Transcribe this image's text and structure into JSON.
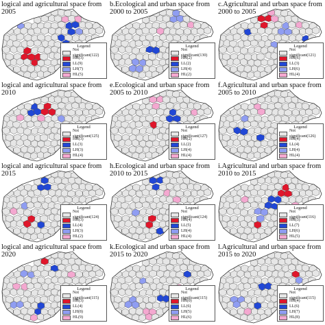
{
  "colors": {
    "not_significant": "#e6e6e6",
    "HH": "#e0162b",
    "LL": "#2147d6",
    "LH": "#8f9df2",
    "HL": "#f4a8d0",
    "border": "#555555"
  },
  "legend_title": "Legend",
  "panels": [
    {
      "id": "a",
      "title_lines": [
        "logical and agricultural space from",
        "2005"
      ],
      "legend": [
        {
          "code": "NS",
          "label": "Not significant(122)"
        },
        {
          "code": "HH",
          "label": "HH(3)"
        },
        {
          "code": "LL",
          "label": "LL(9)"
        },
        {
          "code": "LH",
          "label": "LH(7)"
        },
        {
          "code": "HL",
          "label": "HL(5)"
        }
      ]
    },
    {
      "id": "b",
      "title_lines": [
        "b.Ecological and urban space from",
        "2000 to 2005"
      ],
      "legend": [
        {
          "code": "NS",
          "label": "Not significant(130)"
        },
        {
          "code": "HH",
          "label": "HH(2)"
        },
        {
          "code": "LL",
          "label": "LL(2)"
        },
        {
          "code": "LH",
          "label": "LH(4)"
        },
        {
          "code": "HL",
          "label": "HL(2)"
        }
      ]
    },
    {
      "id": "c",
      "title_lines": [
        "c.Agricultural and urban space from",
        "2000 to 2005"
      ],
      "legend": [
        {
          "code": "NS",
          "label": "Not significant(121)"
        },
        {
          "code": "HH",
          "label": "HH(6)"
        },
        {
          "code": "LL",
          "label": "LL(3)"
        },
        {
          "code": "LH",
          "label": "LH(6)"
        },
        {
          "code": "HL",
          "label": "HL(4)"
        }
      ]
    },
    {
      "id": "d",
      "title_lines": [
        "logical and agricultural space from",
        "2010"
      ],
      "legend": [
        {
          "code": "NS",
          "label": "Not significant(125)"
        },
        {
          "code": "HH",
          "label": "HH(3)"
        },
        {
          "code": "LL",
          "label": "LL(3)"
        },
        {
          "code": "LH",
          "label": "LH(3)"
        },
        {
          "code": "HL",
          "label": "HL(4)"
        }
      ]
    },
    {
      "id": "e",
      "title_lines": [
        "e.Ecological and urban space from",
        "2005 to 2010"
      ],
      "legend": [
        {
          "code": "NS",
          "label": "Not significant(127)"
        },
        {
          "code": "HH",
          "label": "HH(2)"
        },
        {
          "code": "LL",
          "label": "LL(2)"
        },
        {
          "code": "LH",
          "label": "LH(4)"
        },
        {
          "code": "HL",
          "label": "HL(4)"
        }
      ]
    },
    {
      "id": "f",
      "title_lines": [
        "f.Agricultural and urban space from",
        "2005 to 2010"
      ],
      "legend": [
        {
          "code": "NS",
          "label": "Not significant(126)"
        },
        {
          "code": "HH",
          "label": "HH(4)"
        },
        {
          "code": "LL",
          "label": "LL(4)"
        },
        {
          "code": "LH",
          "label": "LH(4)"
        },
        {
          "code": "HL",
          "label": "HL(4)"
        }
      ]
    },
    {
      "id": "g",
      "title_lines": [
        "logical and agricultural space from",
        "2015"
      ],
      "legend": [
        {
          "code": "NS",
          "label": "Not significant(124)"
        },
        {
          "code": "HH",
          "label": "HH(3)"
        },
        {
          "code": "LL",
          "label": "LL(4)"
        },
        {
          "code": "LH",
          "label": "LH(3)"
        },
        {
          "code": "HL",
          "label": "HL(2)"
        }
      ]
    },
    {
      "id": "h",
      "title_lines": [
        "h.Ecological and urban space from",
        "2010 to 2015"
      ],
      "legend": [
        {
          "code": "NS",
          "label": "Not significant(124)"
        },
        {
          "code": "HH",
          "label": "HH(4)"
        },
        {
          "code": "LL",
          "label": "LL(5)"
        },
        {
          "code": "LH",
          "label": "LH(4)"
        },
        {
          "code": "HL",
          "label": "HL(4)"
        }
      ]
    },
    {
      "id": "i",
      "title_lines": [
        "i.Agricultural and urban space from",
        "2010 to 2015"
      ],
      "legend": [
        {
          "code": "NS",
          "label": "Not significant(116)"
        },
        {
          "code": "HH",
          "label": "HH(3)"
        },
        {
          "code": "LL",
          "label": "LL(7)"
        },
        {
          "code": "LH",
          "label": "LH(6)"
        },
        {
          "code": "HL",
          "label": "HL(5)"
        }
      ]
    },
    {
      "id": "j",
      "title_lines": [
        "logical and agricultural space from",
        "2020"
      ],
      "legend": [
        {
          "code": "NS",
          "label": "Not significant(115)"
        },
        {
          "code": "HH",
          "label": "HH(3)"
        },
        {
          "code": "LL",
          "label": "LL(4)"
        },
        {
          "code": "LH",
          "label": "LH(8)"
        },
        {
          "code": "HL",
          "label": "HL(9)"
        }
      ]
    },
    {
      "id": "k",
      "title_lines": [
        "k.Ecological and urban space from",
        "2015 to 2020"
      ],
      "legend": [
        {
          "code": "NS",
          "label": "Not significant(115)"
        },
        {
          "code": "HH",
          "label": "HH(0)"
        },
        {
          "code": "LL",
          "label": "LL(6)"
        },
        {
          "code": "LH",
          "label": "LH(5)"
        },
        {
          "code": "HL",
          "label": "HL(6)"
        }
      ]
    },
    {
      "id": "l",
      "title_lines": [
        "l.Agricultural and urban space from",
        "2015 to 2020"
      ],
      "legend": [
        {
          "code": "NS",
          "label": "Not significant(115)"
        },
        {
          "code": "HH",
          "label": "HH(4)"
        },
        {
          "code": "LL",
          "label": "LL(6)"
        },
        {
          "code": "LH",
          "label": "LH(7)"
        },
        {
          "code": "HL",
          "label": "HL(8)"
        }
      ]
    }
  ]
}
